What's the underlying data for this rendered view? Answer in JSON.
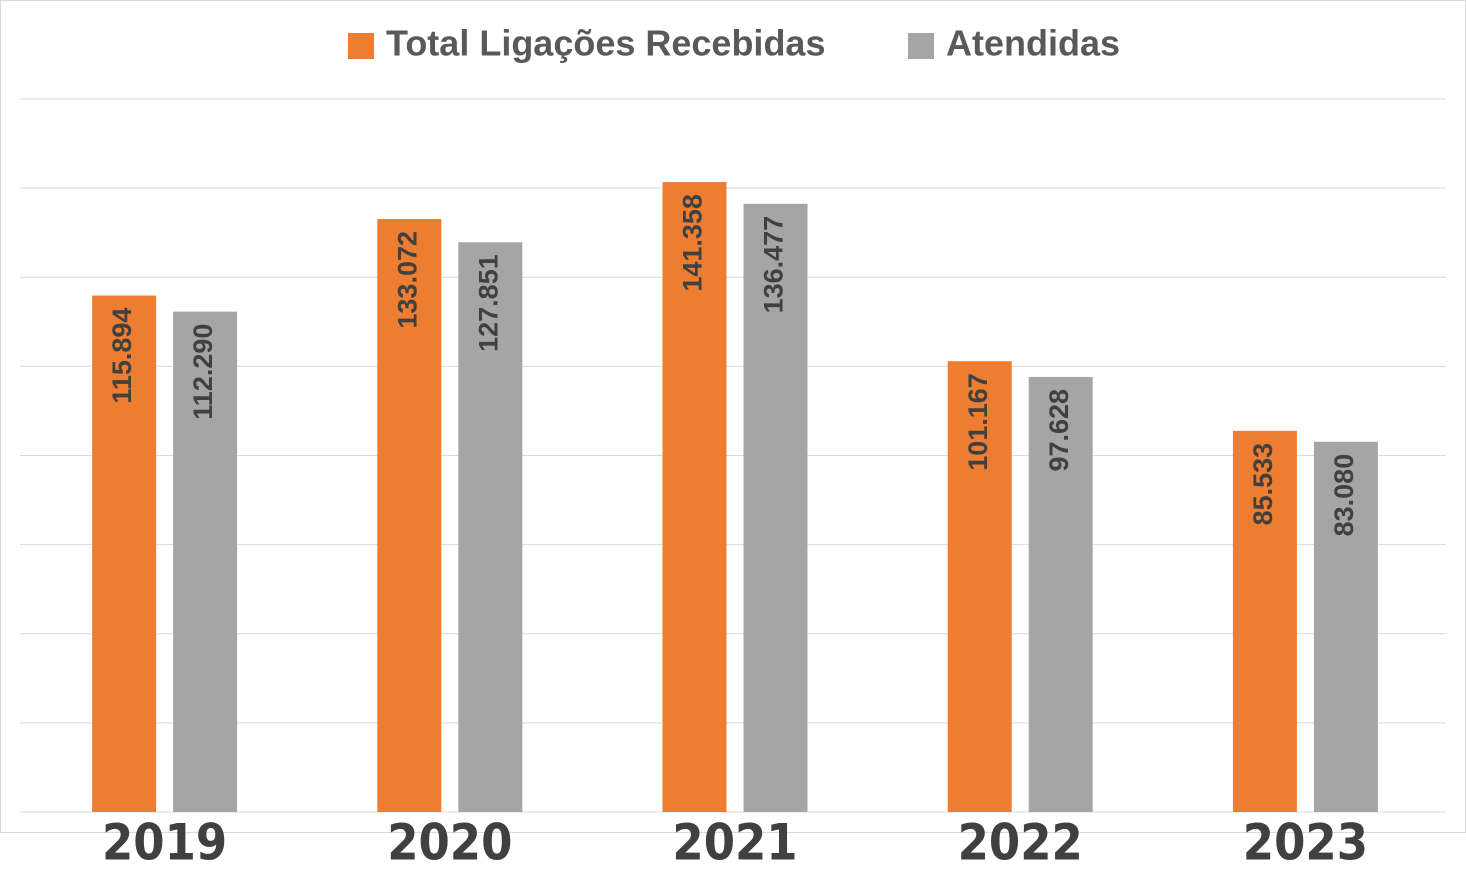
{
  "chart_data": {
    "type": "bar",
    "categories": [
      "2019",
      "2020",
      "2021",
      "2022",
      "2023"
    ],
    "series": [
      {
        "name": "Total Ligações Recebidas",
        "color": "#ed7d31",
        "values": [
          115894,
          133072,
          141358,
          101167,
          85533
        ],
        "value_labels": [
          "115.894",
          "133.072",
          "141.358",
          "101.167",
          "85.533"
        ]
      },
      {
        "name": "Atendidas",
        "color": "#a5a5a5",
        "values": [
          112290,
          127851,
          136477,
          97628,
          83080
        ],
        "value_labels": [
          "112.290",
          "127.851",
          "136.477",
          "97.628",
          "83.080"
        ]
      }
    ],
    "ylim": [
      0,
      160000
    ],
    "yticks": [
      0,
      20000,
      40000,
      60000,
      80000,
      100000,
      120000,
      140000,
      160000
    ],
    "grid": true
  }
}
